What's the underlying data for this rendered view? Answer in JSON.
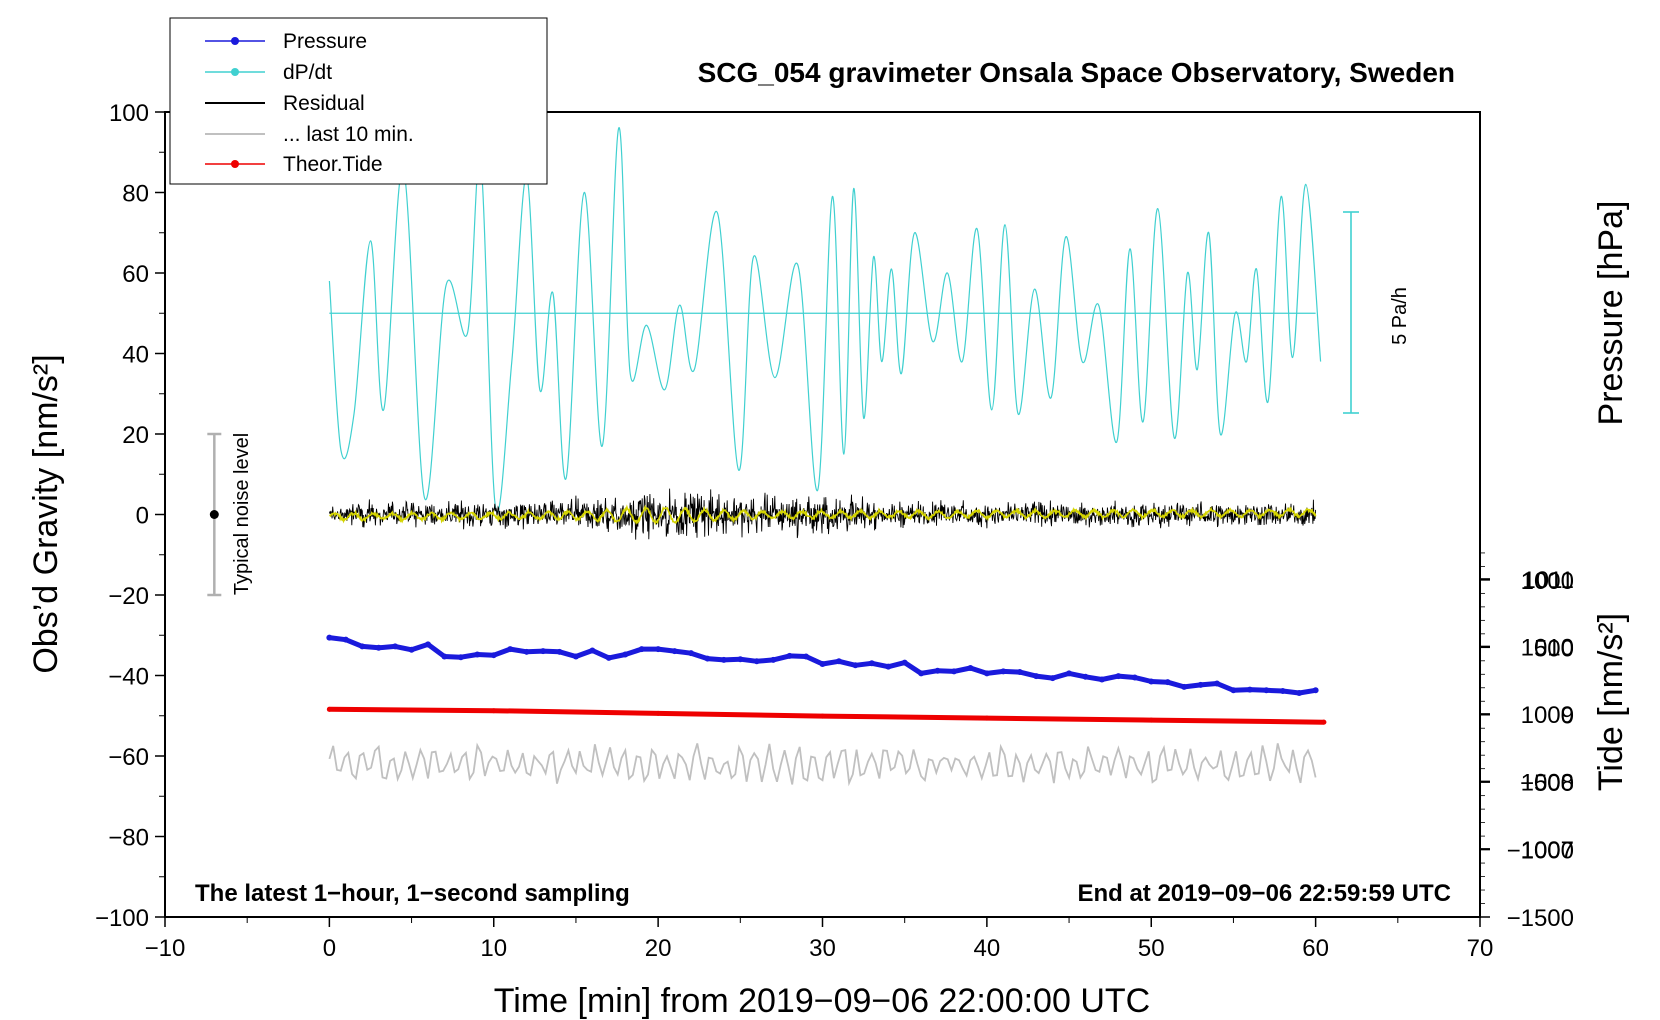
{
  "chart_data": {
    "type": "line",
    "title": "SCG_054 gravimeter Onsala Space Observatory, Sweden",
    "xlabel": "Time [min] from 2019−09−06 22:00:00 UTC",
    "ylabel_left": "Obs’d Gravity [nm/s²]",
    "ylabel_right_top": "Pressure [hPa]",
    "ylabel_right_bottom": "Tide [nm/s²]",
    "xlim": [
      -10,
      70
    ],
    "ylim": [
      -100,
      100
    ],
    "pressure_lim": [
      1005.99,
      1017.92
    ],
    "tide_lim": [
      -1500,
      4470
    ],
    "x_ticks": [
      -10,
      0,
      10,
      20,
      30,
      40,
      50,
      60,
      70
    ],
    "x_tick_labels": [
      "−10",
      "0",
      "10",
      "20",
      "30",
      "40",
      "50",
      "60",
      "70"
    ],
    "y_ticks": [
      100,
      80,
      60,
      40,
      20,
      0,
      -20,
      -40,
      -60,
      -80,
      -100
    ],
    "y_tick_labels": [
      "100",
      "80",
      "60",
      "40",
      "20",
      "0",
      "−20",
      "−40",
      "−60",
      "−80",
      "−100"
    ],
    "pressure_ticks": [
      1011,
      1010,
      1009,
      1008,
      1007
    ],
    "pressure_tick_labels": [
      "1011",
      "1010",
      "1009",
      "1008",
      "1007"
    ],
    "tide_ticks": [
      1000,
      500,
      0,
      -500,
      -1000,
      -1500
    ],
    "tide_tick_labels": [
      "1000",
      "500",
      "0",
      "−500",
      "−1000",
      "−1500"
    ],
    "legend": {
      "position": "top-left",
      "entries": [
        {
          "label": "Pressure",
          "color": "#1a1adc",
          "marker": true
        },
        {
          "label": "dP/dt",
          "color": "#40d0d0",
          "marker": true
        },
        {
          "label": "Residual",
          "color": "#000000",
          "marker": false
        },
        {
          "label": "... last 10 min.",
          "color": "#c0c0c0",
          "marker": false
        },
        {
          "label": "Theor.Tide",
          "color": "#ee0000",
          "marker": true
        }
      ]
    },
    "annotations": {
      "noise_label": "Typical noise level",
      "noise_bar": {
        "x": -7,
        "center": 0,
        "half_range": 20
      },
      "rate_label": "5 Pa/h",
      "note_left": "The latest 1−hour, 1−second sampling",
      "note_right": "End at 2019−09−06 22:59:59 UTC"
    },
    "series": [
      {
        "name": "Pressure",
        "axis": "pressure",
        "color": "#1a1adc",
        "x": [
          0,
          1,
          2,
          3,
          4,
          5,
          6,
          7,
          8,
          9,
          10,
          11,
          12,
          13,
          14,
          15,
          16,
          17,
          18,
          19,
          20,
          21,
          22,
          23,
          24,
          25,
          26,
          27,
          28,
          29,
          30,
          31,
          32,
          33,
          34,
          35,
          36,
          37,
          38,
          39,
          40,
          41,
          42,
          43,
          44,
          45,
          46,
          47,
          48,
          49,
          50,
          51,
          52,
          53,
          54,
          55,
          56,
          57,
          58,
          59,
          60
        ],
        "y": [
          1010.13,
          1010.1,
          1010.0,
          1009.98,
          1010.0,
          1009.95,
          1010.03,
          1009.85,
          1009.84,
          1009.88,
          1009.87,
          1009.96,
          1009.92,
          1009.93,
          1009.92,
          1009.85,
          1009.94,
          1009.83,
          1009.88,
          1009.96,
          1009.96,
          1009.93,
          1009.9,
          1009.82,
          1009.8,
          1009.81,
          1009.78,
          1009.8,
          1009.86,
          1009.85,
          1009.74,
          1009.78,
          1009.72,
          1009.75,
          1009.7,
          1009.76,
          1009.6,
          1009.64,
          1009.63,
          1009.68,
          1009.6,
          1009.63,
          1009.62,
          1009.56,
          1009.53,
          1009.6,
          1009.55,
          1009.51,
          1009.56,
          1009.54,
          1009.48,
          1009.47,
          1009.4,
          1009.43,
          1009.45,
          1009.35,
          1009.36,
          1009.35,
          1009.34,
          1009.31,
          1009.35
        ]
      },
      {
        "name": "dP/dt",
        "axis": "left",
        "color": "#40d0d0",
        "x": [
          0,
          0.7,
          1.5,
          2.5,
          3.3,
          4.5,
          5.8,
          7.1,
          8.4,
          9.2,
          10.1,
          11.1,
          12.0,
          12.8,
          13.6,
          14.4,
          15.5,
          16.6,
          17.6,
          18.3,
          19.3,
          20.4,
          21.3,
          22.2,
          23.6,
          24.9,
          25.8,
          27.1,
          28.5,
          29.7,
          30.6,
          31.3,
          31.9,
          32.5,
          33.1,
          33.6,
          34.2,
          34.8,
          35.6,
          36.7,
          37.6,
          38.5,
          39.4,
          40.3,
          41.1,
          41.9,
          42.9,
          43.9,
          44.8,
          45.8,
          46.8,
          47.9,
          48.7,
          49.5,
          50.4,
          51.4,
          52.2,
          52.8,
          53.5,
          54.2,
          55.1,
          55.8,
          56.4,
          57.1,
          57.9,
          58.6,
          59.4,
          60.3
        ],
        "y": [
          58,
          16,
          25,
          68,
          26,
          86,
          4,
          57,
          45,
          88,
          2,
          38,
          84,
          31,
          55,
          9,
          80,
          17,
          96,
          35,
          47,
          31,
          52,
          36,
          75,
          11,
          64,
          34,
          62,
          6,
          79,
          15,
          81,
          24,
          64,
          38,
          61,
          35,
          70,
          43,
          60,
          38,
          71,
          26,
          72,
          25,
          56,
          29,
          69,
          38,
          52,
          18,
          66,
          23,
          76,
          19,
          60,
          36,
          70,
          20,
          50,
          38,
          61,
          28,
          79,
          39,
          82,
          38
        ]
      },
      {
        "name": "Residual",
        "axis": "left",
        "color": "#000000",
        "x": [
          0,
          60
        ],
        "y": [
          0,
          0
        ],
        "amplitude": [
          -16,
          14
        ]
      },
      {
        "name": "... last 10 min.",
        "axis": "left",
        "color": "#c0c0c0",
        "x": [
          0,
          60
        ],
        "y": [
          -62,
          -62
        ],
        "amplitude": [
          -71,
          -53
        ]
      },
      {
        "name": "Theor.Tide",
        "axis": "tide",
        "color": "#ee0000",
        "x": [
          0,
          10,
          20,
          30,
          40,
          50,
          60.5
        ],
        "y": [
          40,
          30,
          10,
          -10,
          -25,
          -40,
          -55
        ]
      }
    ]
  }
}
